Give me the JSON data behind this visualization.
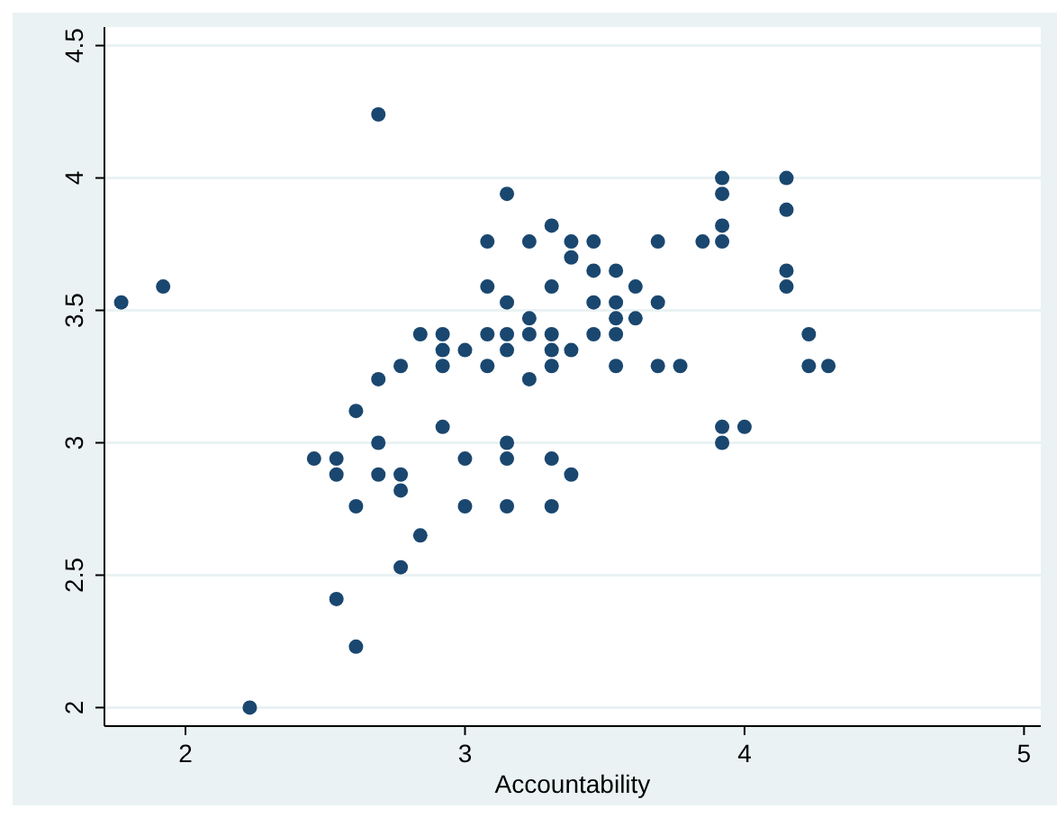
{
  "chart_data": {
    "type": "scatter",
    "xlabel": "Accountability",
    "xlim": [
      1.71,
      5.06
    ],
    "ylim": [
      1.93,
      4.57
    ],
    "xticks": [
      2,
      3,
      4,
      5
    ],
    "yticks": [
      2,
      2.5,
      3,
      3.5,
      4,
      4.5
    ],
    "grid": "y",
    "marker": "circle",
    "series": [
      {
        "color": "#1a476f",
        "x": [
          1.77,
          1.92,
          2.23,
          2.46,
          2.54,
          2.54,
          2.54,
          2.61,
          2.61,
          2.61,
          2.69,
          2.69,
          2.69,
          2.69,
          2.77,
          2.77,
          2.77,
          2.77,
          2.84,
          2.84,
          2.92,
          2.92,
          2.92,
          2.92,
          3.0,
          3.0,
          3.0,
          3.08,
          3.08,
          3.08,
          3.08,
          3.15,
          3.15,
          3.15,
          3.15,
          3.15,
          3.15,
          3.15,
          3.23,
          3.23,
          3.23,
          3.23,
          3.31,
          3.31,
          3.31,
          3.31,
          3.31,
          3.31,
          3.31,
          3.38,
          3.38,
          3.38,
          3.38,
          3.46,
          3.46,
          3.46,
          3.46,
          3.54,
          3.54,
          3.54,
          3.54,
          3.54,
          3.61,
          3.61,
          3.69,
          3.69,
          3.69,
          3.77,
          3.85,
          3.92,
          3.92,
          3.92,
          3.92,
          3.92,
          3.92,
          4.0,
          4.15,
          4.15,
          4.15,
          4.15,
          4.23,
          4.23,
          4.3
        ],
        "values": [
          3.53,
          3.59,
          2.0,
          2.94,
          2.94,
          2.88,
          2.41,
          3.12,
          2.76,
          2.23,
          4.24,
          3.24,
          3.0,
          2.88,
          3.29,
          2.88,
          2.82,
          2.53,
          3.41,
          2.65,
          3.41,
          3.35,
          3.29,
          3.06,
          3.35,
          2.94,
          2.76,
          3.76,
          3.59,
          3.41,
          3.29,
          3.94,
          3.53,
          3.41,
          3.35,
          3.0,
          2.94,
          2.76,
          3.76,
          3.47,
          3.41,
          3.24,
          3.82,
          3.59,
          3.41,
          3.35,
          3.29,
          2.94,
          2.76,
          3.76,
          3.7,
          3.35,
          2.88,
          3.76,
          3.65,
          3.53,
          3.41,
          3.65,
          3.53,
          3.47,
          3.41,
          3.29,
          3.59,
          3.47,
          3.76,
          3.53,
          3.29,
          3.29,
          3.76,
          4.0,
          3.94,
          3.82,
          3.76,
          3.06,
          3.0,
          3.06,
          4.0,
          3.88,
          3.65,
          3.59,
          3.41,
          3.29,
          3.29
        ]
      }
    ]
  }
}
